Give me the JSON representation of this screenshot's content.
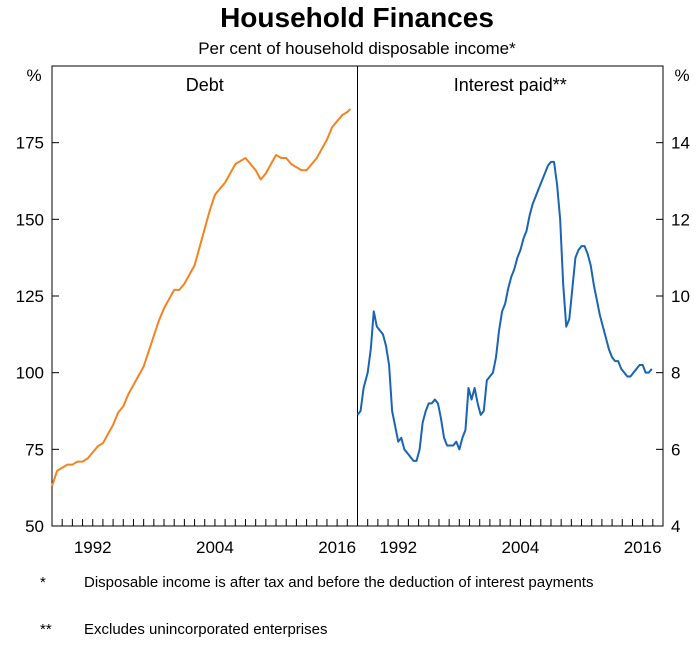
{
  "title": "Household Finances",
  "subtitle": "Per cent of household disposable income*",
  "footnotes": [
    {
      "mark": "*",
      "text": "Disposable income is after tax and before the deduction of interest payments"
    },
    {
      "mark": "**",
      "text": "Excludes unincorporated enterprises"
    }
  ],
  "chart_data": [
    {
      "type": "line",
      "panel_title": "Debt",
      "ylabel": "%",
      "ylim": [
        50,
        200
      ],
      "yticks": [
        50,
        75,
        100,
        125,
        150,
        175
      ],
      "xlim": [
        1988,
        2018
      ],
      "xticks": [
        1992,
        2004,
        2016
      ],
      "color": "#f58220",
      "series": [
        {
          "x": [
            1988.0,
            1988.5,
            1989.0,
            1989.5,
            1990.0,
            1990.5,
            1991.0,
            1991.5,
            1992.0,
            1992.5,
            1993.0,
            1993.5,
            1994.0,
            1994.5,
            1995.0,
            1995.5,
            1996.0,
            1996.5,
            1997.0,
            1997.5,
            1998.0,
            1998.5,
            1999.0,
            1999.5,
            2000.0,
            2000.5,
            2001.0,
            2001.5,
            2002.0,
            2002.5,
            2003.0,
            2003.5,
            2004.0,
            2004.5,
            2005.0,
            2005.5,
            2006.0,
            2006.5,
            2007.0,
            2007.5,
            2008.0,
            2008.5,
            2009.0,
            2009.5,
            2010.0,
            2010.5,
            2011.0,
            2011.5,
            2012.0,
            2012.5,
            2013.0,
            2013.5,
            2014.0,
            2014.5,
            2015.0,
            2015.5,
            2016.0,
            2016.5,
            2017.0,
            2017.3
          ],
          "values": [
            63,
            68,
            69,
            70,
            70,
            71,
            71,
            72,
            74,
            76,
            77,
            80,
            83,
            87,
            89,
            93,
            96,
            99,
            102,
            107,
            112,
            117,
            121,
            124,
            127,
            127,
            129,
            132,
            135,
            141,
            147,
            153,
            158,
            160,
            162,
            165,
            168,
            169,
            170,
            168,
            166,
            163,
            165,
            168,
            171,
            170,
            170,
            168,
            167,
            166,
            166,
            168,
            170,
            173,
            176,
            180,
            182,
            184,
            185,
            186
          ]
        }
      ]
    },
    {
      "type": "line",
      "panel_title": "Interest paid**",
      "ylabel": "%",
      "ylim": [
        4,
        16
      ],
      "yticks": [
        4,
        6,
        8,
        10,
        12,
        14
      ],
      "xlim": [
        1988,
        2018
      ],
      "xticks": [
        1992,
        2004,
        2016
      ],
      "color": "#1a64b4",
      "series": [
        {
          "x": [
            1988.0,
            1988.3,
            1988.6,
            1989.0,
            1989.3,
            1989.6,
            1989.9,
            1990.2,
            1990.5,
            1990.8,
            1991.1,
            1991.4,
            1991.7,
            1992.0,
            1992.3,
            1992.6,
            1992.9,
            1993.2,
            1993.5,
            1993.8,
            1994.1,
            1994.4,
            1994.7,
            1995.0,
            1995.3,
            1995.6,
            1995.9,
            1996.2,
            1996.5,
            1996.8,
            1997.1,
            1997.4,
            1997.7,
            1998.0,
            1998.3,
            1998.6,
            1998.9,
            1999.2,
            1999.5,
            1999.8,
            2000.1,
            2000.4,
            2000.7,
            2001.0,
            2001.3,
            2001.6,
            2001.9,
            2002.2,
            2002.5,
            2002.8,
            2003.1,
            2003.4,
            2003.7,
            2004.0,
            2004.3,
            2004.6,
            2004.9,
            2005.2,
            2005.5,
            2005.8,
            2006.1,
            2006.4,
            2006.7,
            2007.0,
            2007.3,
            2007.6,
            2007.9,
            2008.2,
            2008.5,
            2008.8,
            2009.1,
            2009.4,
            2009.7,
            2010.0,
            2010.3,
            2010.6,
            2010.9,
            2011.2,
            2011.5,
            2011.8,
            2012.1,
            2012.4,
            2012.7,
            2013.0,
            2013.3,
            2013.6,
            2013.9,
            2014.2,
            2014.5,
            2014.8,
            2015.1,
            2015.4,
            2015.7,
            2016.0,
            2016.3,
            2016.6,
            2016.9
          ],
          "values": [
            6.9,
            7.0,
            7.6,
            8.0,
            8.6,
            9.6,
            9.2,
            9.1,
            9.0,
            8.7,
            8.2,
            7.0,
            6.6,
            6.2,
            6.3,
            6.0,
            5.9,
            5.8,
            5.7,
            5.7,
            6.0,
            6.7,
            7.0,
            7.2,
            7.2,
            7.3,
            7.2,
            6.8,
            6.3,
            6.1,
            6.1,
            6.1,
            6.2,
            6.0,
            6.3,
            6.5,
            7.6,
            7.3,
            7.6,
            7.2,
            6.9,
            7.0,
            7.8,
            7.9,
            8.0,
            8.4,
            9.1,
            9.6,
            9.8,
            10.2,
            10.5,
            10.7,
            11.0,
            11.2,
            11.5,
            11.7,
            12.1,
            12.4,
            12.6,
            12.8,
            13.0,
            13.2,
            13.4,
            13.5,
            13.5,
            12.9,
            12.0,
            10.3,
            9.2,
            9.4,
            10.2,
            11.0,
            11.2,
            11.3,
            11.3,
            11.1,
            10.8,
            10.3,
            9.9,
            9.5,
            9.2,
            8.9,
            8.6,
            8.4,
            8.3,
            8.3,
            8.1,
            8.0,
            7.9,
            7.9,
            8.0,
            8.1,
            8.2,
            8.2,
            8.0,
            8.0,
            8.1
          ]
        }
      ]
    }
  ]
}
